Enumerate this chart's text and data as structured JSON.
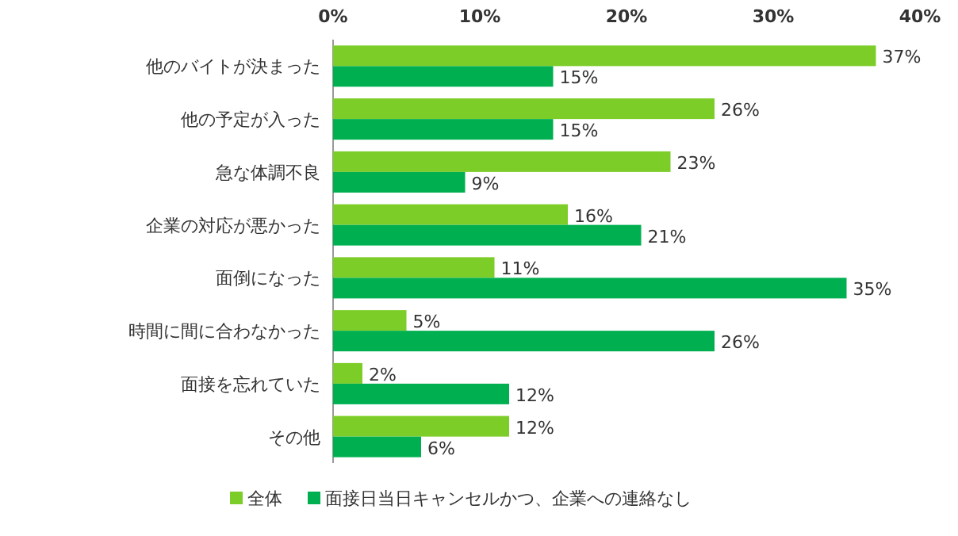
{
  "chart_data": {
    "type": "bar",
    "orientation": "horizontal",
    "categories": [
      "他のバイトが決まった",
      "他の予定が入った",
      "急な体調不良",
      "企業の対応が悪かった",
      "面倒になった",
      "時間に間に合わなかった",
      "面接を忘れていた",
      "その他"
    ],
    "series": [
      {
        "name": "全体",
        "color": "#7dcd28",
        "values": [
          37,
          26,
          23,
          16,
          11,
          5,
          2,
          12
        ],
        "value_labels": [
          "37%",
          "26%",
          "23%",
          "16%",
          "11%",
          "5%",
          "2%",
          "12%"
        ]
      },
      {
        "name": "面接日当日キャンセルかつ、企業への連絡なし",
        "color": "#00b050",
        "values": [
          15,
          15,
          9,
          21,
          35,
          26,
          12,
          6
        ],
        "value_labels": [
          "15%",
          "15%",
          "9%",
          "21%",
          "35%",
          "26%",
          "12%",
          "6%"
        ]
      }
    ],
    "xlim": [
      0,
      40
    ],
    "xticks": [
      {
        "value": 0,
        "label": "0%"
      },
      {
        "value": 10,
        "label": "10%"
      },
      {
        "value": 20,
        "label": "20%"
      },
      {
        "value": 30,
        "label": "30%"
      },
      {
        "value": 40,
        "label": "40%"
      }
    ],
    "legend": "bottom"
  }
}
